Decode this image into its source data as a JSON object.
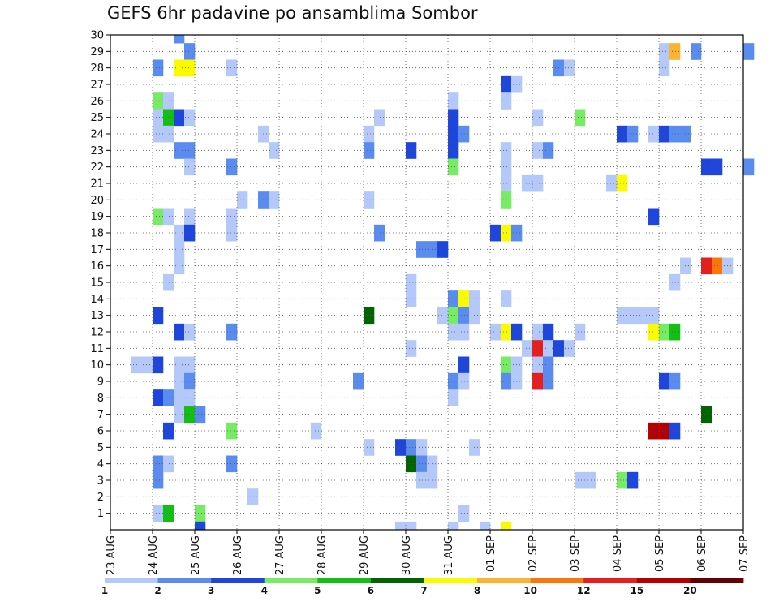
{
  "chart_data": {
    "type": "heatmap",
    "title": "GEFS 6hr padavine po ansamblima Sombor",
    "xlabel": "",
    "ylabel": "",
    "x_tick_labels": [
      "23 AUG",
      "24 AUG",
      "25 AUG",
      "26 AUG",
      "27 AUG",
      "28 AUG",
      "29 AUG",
      "30 AUG",
      "31 AUG",
      "01 SEP",
      "02 SEP",
      "03 SEP",
      "04 SEP",
      "05 SEP",
      "06 SEP",
      "07 SEP"
    ],
    "x_range_days": [
      0,
      15
    ],
    "y_tick_labels": [
      "1",
      "2",
      "3",
      "4",
      "5",
      "6",
      "7",
      "8",
      "9",
      "10",
      "11",
      "12",
      "13",
      "14",
      "15",
      "16",
      "17",
      "18",
      "19",
      "20",
      "21",
      "22",
      "23",
      "24",
      "25",
      "26",
      "27",
      "28",
      "29",
      "30"
    ],
    "y_range": [
      0,
      30
    ],
    "grid": true,
    "colorbar": {
      "labels": [
        "1",
        "2",
        "3",
        "4",
        "5",
        "6",
        "7",
        "8",
        "10",
        "12",
        "15",
        "20"
      ],
      "colors": [
        "#b4c8fa",
        "#5a8cf0",
        "#1e46dc",
        "#78eb64",
        "#14be14",
        "#006400",
        "#fafa00",
        "#fab432",
        "#fa780a",
        "#e61e1e",
        "#b40000",
        "#640000"
      ]
    },
    "cells_note": "each cell: [member(1-30), day offset from 23 AUG (0.25 = 6h step), level index into colorbar colors]",
    "cells": [
      [
        30,
        1.5,
        1
      ],
      [
        29,
        1.75,
        1
      ],
      [
        29,
        13,
        0
      ],
      [
        29,
        13.25,
        7
      ],
      [
        29,
        13.75,
        1
      ],
      [
        29,
        15,
        1
      ],
      [
        28,
        1,
        1
      ],
      [
        28,
        1.5,
        6
      ],
      [
        28,
        1.75,
        6
      ],
      [
        28,
        2.75,
        0
      ],
      [
        28,
        10.5,
        1
      ],
      [
        28,
        10.75,
        0
      ],
      [
        28,
        13,
        0
      ],
      [
        27,
        9.25,
        2
      ],
      [
        27,
        9.5,
        0
      ],
      [
        26,
        1,
        3
      ],
      [
        26,
        1.25,
        0
      ],
      [
        26,
        8,
        0
      ],
      [
        26,
        9.25,
        0
      ],
      [
        25,
        1,
        0
      ],
      [
        25,
        1.25,
        4
      ],
      [
        25,
        1.5,
        2
      ],
      [
        25,
        1.75,
        0
      ],
      [
        25,
        6.25,
        0
      ],
      [
        25,
        8,
        2
      ],
      [
        25,
        10,
        0
      ],
      [
        25,
        11,
        3
      ],
      [
        24,
        1,
        0
      ],
      [
        24,
        1.25,
        0
      ],
      [
        24,
        3.5,
        0
      ],
      [
        24,
        6,
        0
      ],
      [
        24,
        8,
        2
      ],
      [
        24,
        8.25,
        1
      ],
      [
        24,
        12,
        2
      ],
      [
        24,
        12.25,
        1
      ],
      [
        24,
        12.75,
        0
      ],
      [
        24,
        13,
        2
      ],
      [
        24,
        13.25,
        1
      ],
      [
        24,
        13.5,
        1
      ],
      [
        23,
        1.5,
        1
      ],
      [
        23,
        1.75,
        1
      ],
      [
        23,
        3.75,
        0
      ],
      [
        23,
        6,
        1
      ],
      [
        23,
        7,
        2
      ],
      [
        23,
        8,
        2
      ],
      [
        23,
        9.25,
        0
      ],
      [
        23,
        10,
        0
      ],
      [
        23,
        10.25,
        1
      ],
      [
        22,
        1.75,
        0
      ],
      [
        22,
        2.75,
        1
      ],
      [
        22,
        8,
        3
      ],
      [
        22,
        9.25,
        0
      ],
      [
        22,
        14,
        2
      ],
      [
        22,
        14.25,
        2
      ],
      [
        22,
        15,
        1
      ],
      [
        21,
        9.25,
        0
      ],
      [
        21,
        9.75,
        0
      ],
      [
        21,
        10,
        0
      ],
      [
        21,
        11.75,
        0
      ],
      [
        21,
        12,
        6
      ],
      [
        20,
        3,
        0
      ],
      [
        20,
        3.5,
        1
      ],
      [
        20,
        3.75,
        0
      ],
      [
        20,
        6,
        0
      ],
      [
        20,
        9.25,
        3
      ],
      [
        19,
        1,
        3
      ],
      [
        19,
        1.25,
        0
      ],
      [
        19,
        1.75,
        0
      ],
      [
        19,
        2.75,
        0
      ],
      [
        19,
        12.75,
        2
      ],
      [
        18,
        1.5,
        0
      ],
      [
        18,
        1.75,
        2
      ],
      [
        18,
        2.75,
        0
      ],
      [
        18,
        6.25,
        1
      ],
      [
        18,
        9,
        2
      ],
      [
        18,
        9.25,
        6
      ],
      [
        18,
        9.5,
        1
      ],
      [
        17,
        1.5,
        0
      ],
      [
        17,
        7.25,
        1
      ],
      [
        17,
        7.5,
        1
      ],
      [
        17,
        7.75,
        2
      ],
      [
        16,
        1.5,
        0
      ],
      [
        16,
        13.5,
        0
      ],
      [
        16,
        14,
        9
      ],
      [
        16,
        14.25,
        8
      ],
      [
        16,
        14.5,
        0
      ],
      [
        15,
        1.25,
        0
      ],
      [
        15,
        7,
        0
      ],
      [
        15,
        13.25,
        0
      ],
      [
        14,
        7,
        0
      ],
      [
        14,
        8,
        1
      ],
      [
        14,
        8.25,
        6
      ],
      [
        14,
        8.5,
        0
      ],
      [
        14,
        9.25,
        0
      ],
      [
        13,
        1,
        2
      ],
      [
        13,
        6,
        5
      ],
      [
        13,
        7.75,
        0
      ],
      [
        13,
        8,
        3
      ],
      [
        13,
        8.25,
        1
      ],
      [
        13,
        8.5,
        0
      ],
      [
        13,
        12,
        0
      ],
      [
        13,
        12.25,
        0
      ],
      [
        13,
        12.5,
        0
      ],
      [
        13,
        12.75,
        0
      ],
      [
        12,
        1.5,
        2
      ],
      [
        12,
        1.75,
        0
      ],
      [
        12,
        2.75,
        1
      ],
      [
        12,
        8,
        0
      ],
      [
        12,
        8.25,
        0
      ],
      [
        12,
        9,
        0
      ],
      [
        12,
        9.25,
        6
      ],
      [
        12,
        9.5,
        2
      ],
      [
        12,
        10,
        0
      ],
      [
        12,
        10.25,
        2
      ],
      [
        12,
        11,
        0
      ],
      [
        12,
        12.75,
        6
      ],
      [
        12,
        13,
        3
      ],
      [
        12,
        13.25,
        4
      ],
      [
        11,
        7,
        0
      ],
      [
        11,
        9.75,
        0
      ],
      [
        11,
        10,
        9
      ],
      [
        11,
        10.25,
        0
      ],
      [
        11,
        10.5,
        2
      ],
      [
        11,
        10.75,
        0
      ],
      [
        10,
        0.5,
        0
      ],
      [
        10,
        0.75,
        0
      ],
      [
        10,
        1,
        2
      ],
      [
        10,
        1.5,
        0
      ],
      [
        10,
        1.75,
        0
      ],
      [
        10,
        8.25,
        2
      ],
      [
        10,
        9.25,
        3
      ],
      [
        10,
        9.5,
        0
      ],
      [
        10,
        10,
        0
      ],
      [
        10,
        10.25,
        1
      ],
      [
        9,
        1.5,
        0
      ],
      [
        9,
        1.75,
        1
      ],
      [
        9,
        5.75,
        1
      ],
      [
        9,
        8,
        1
      ],
      [
        9,
        8.25,
        0
      ],
      [
        9,
        9.25,
        1
      ],
      [
        9,
        9.5,
        0
      ],
      [
        9,
        10,
        9
      ],
      [
        9,
        10.25,
        1
      ],
      [
        9,
        13,
        2
      ],
      [
        9,
        13.25,
        1
      ],
      [
        8,
        1,
        2
      ],
      [
        8,
        1.25,
        1
      ],
      [
        8,
        1.5,
        0
      ],
      [
        8,
        1.75,
        0
      ],
      [
        8,
        8,
        0
      ],
      [
        7,
        1.5,
        0
      ],
      [
        7,
        1.75,
        4
      ],
      [
        7,
        2,
        1
      ],
      [
        7,
        14,
        5
      ],
      [
        6,
        1.25,
        2
      ],
      [
        6,
        2.75,
        3
      ],
      [
        6,
        4.75,
        0
      ],
      [
        6,
        12.75,
        10
      ],
      [
        6,
        13,
        10
      ],
      [
        6,
        13.25,
        2
      ],
      [
        5,
        6,
        0
      ],
      [
        5,
        6.75,
        2
      ],
      [
        5,
        7,
        1
      ],
      [
        5,
        7.25,
        0
      ],
      [
        5,
        8.5,
        0
      ],
      [
        4,
        1,
        1
      ],
      [
        4,
        1.25,
        0
      ],
      [
        4,
        2.75,
        1
      ],
      [
        4,
        7,
        5
      ],
      [
        4,
        7.25,
        1
      ],
      [
        4,
        7.5,
        0
      ],
      [
        3,
        1,
        1
      ],
      [
        3,
        7.25,
        0
      ],
      [
        3,
        7.5,
        0
      ],
      [
        3,
        11,
        0
      ],
      [
        3,
        11.25,
        0
      ],
      [
        3,
        12,
        3
      ],
      [
        3,
        12.25,
        2
      ],
      [
        2,
        3.25,
        0
      ],
      [
        1,
        1,
        0
      ],
      [
        1,
        1.25,
        4
      ],
      [
        1,
        2,
        3
      ],
      [
        1,
        8.25,
        0
      ],
      [
        0,
        2,
        2
      ],
      [
        0,
        6.75,
        0
      ],
      [
        0,
        7,
        0
      ],
      [
        0,
        8,
        0
      ],
      [
        0,
        8.75,
        0
      ],
      [
        0,
        9.25,
        6
      ]
    ]
  }
}
